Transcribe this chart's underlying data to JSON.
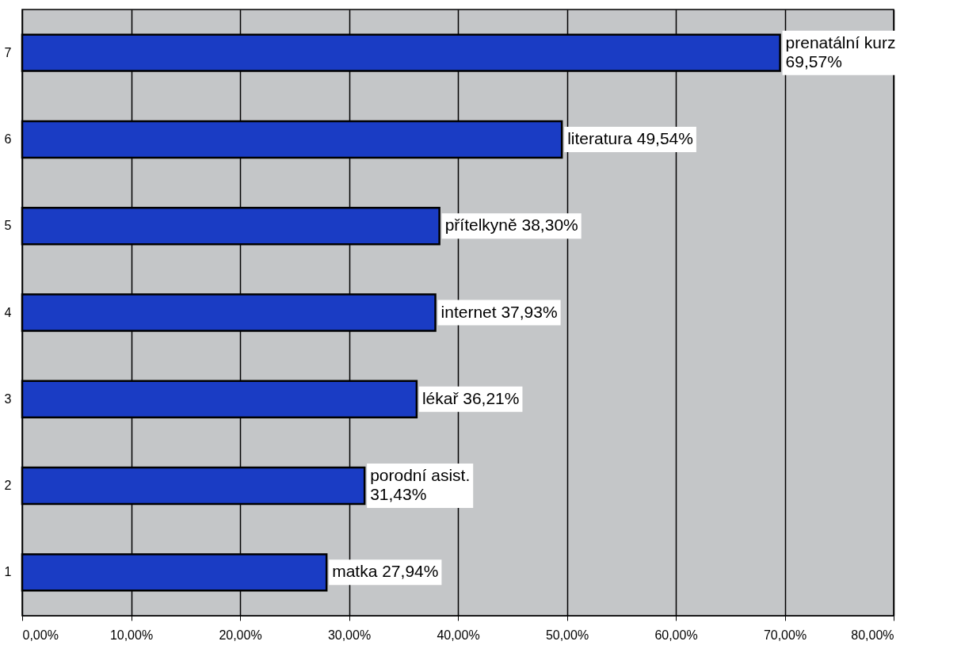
{
  "chart_data": {
    "type": "bar",
    "orientation": "horizontal",
    "categories": [
      "7",
      "6",
      "5",
      "4",
      "3",
      "2",
      "1"
    ],
    "values": [
      69.57,
      49.54,
      38.3,
      37.93,
      36.21,
      31.43,
      27.94
    ],
    "value_labels": [
      "prenatální kurz\n69,57%",
      "literatura 49,54%",
      "přítelkyně 38,30%",
      "internet 37,93%",
      "lékař 36,21%",
      "porodní asist.\n31,43%",
      "matka 27,94%"
    ],
    "color": "#1a3cc4",
    "xlim": [
      0,
      80
    ],
    "xticks": [
      {
        "value": 0,
        "label": "0,00%"
      },
      {
        "value": 10,
        "label": "10,00%"
      },
      {
        "value": 20,
        "label": "20,00%"
      },
      {
        "value": 30,
        "label": "30,00%"
      },
      {
        "value": 40,
        "label": "40,00%"
      },
      {
        "value": 50,
        "label": "50,00%"
      },
      {
        "value": 60,
        "label": "60,00%"
      },
      {
        "value": 70,
        "label": "70,00%"
      },
      {
        "value": 80,
        "label": "80,00%"
      }
    ],
    "grid": "x"
  }
}
